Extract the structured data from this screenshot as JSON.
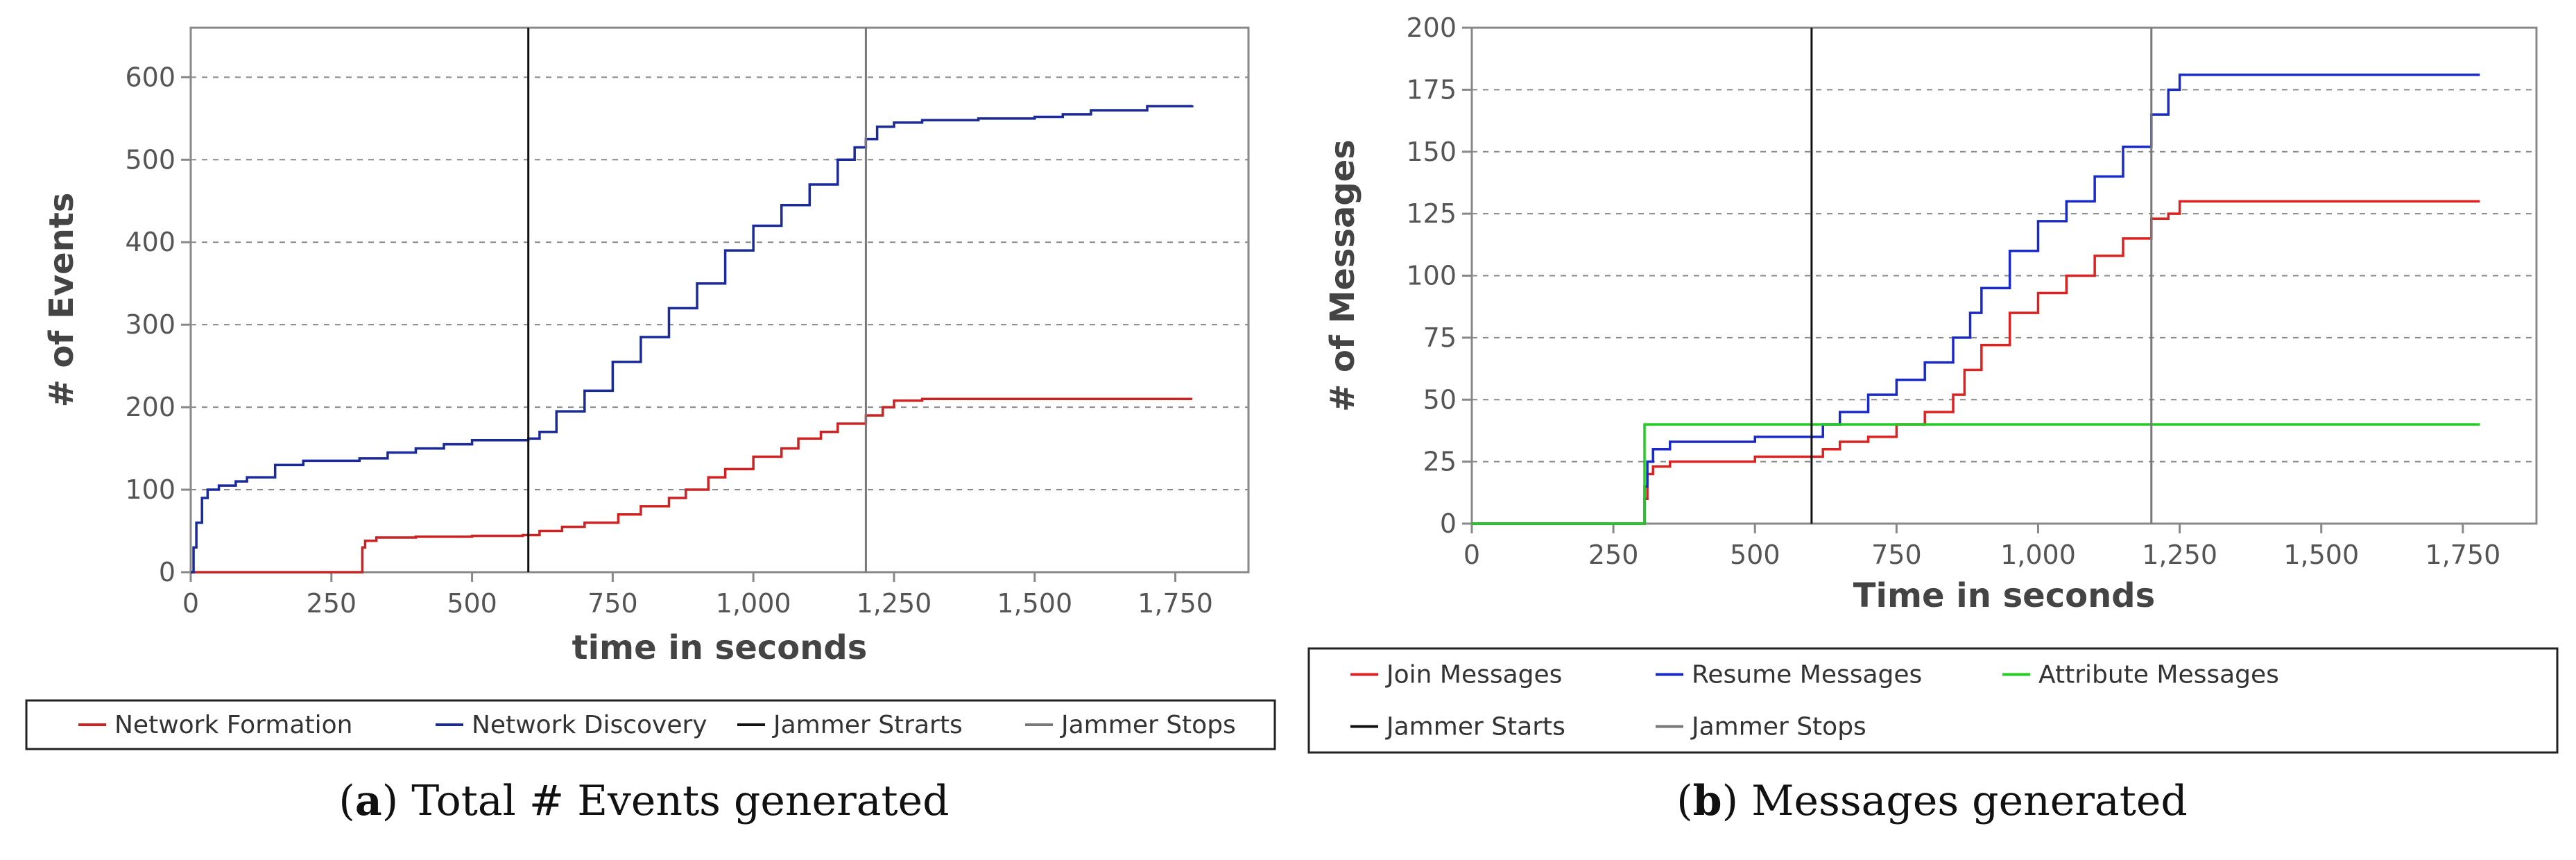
{
  "chart_data": [
    {
      "type": "line",
      "caption_letter": "a",
      "caption_text": "Total # Events generated",
      "xlabel": "time in seconds",
      "ylabel": "# of Events",
      "xlim": [
        0,
        1880
      ],
      "ylim": [
        0,
        660
      ],
      "xticks": [
        0,
        250,
        500,
        750,
        1000,
        1250,
        1500,
        1750
      ],
      "xtick_labels": [
        "0",
        "250",
        "500",
        "750",
        "1,000",
        "1,250",
        "1,500",
        "1,750"
      ],
      "yticks": [
        0,
        100,
        200,
        300,
        400,
        500,
        600
      ],
      "ytick_labels": [
        "0",
        "100",
        "200",
        "300",
        "400",
        "500",
        "600"
      ],
      "grid": true,
      "legend_position": "bottom",
      "series": [
        {
          "name": "Network Formation",
          "color": "#cc2222",
          "x": [
            0,
            300,
            305,
            310,
            330,
            400,
            500,
            590,
            620,
            660,
            700,
            760,
            800,
            850,
            880,
            920,
            950,
            1000,
            1050,
            1080,
            1120,
            1150,
            1200,
            1230,
            1250,
            1300,
            1400,
            1500,
            1600,
            1780
          ],
          "y": [
            0,
            0,
            30,
            38,
            42,
            43,
            44,
            45,
            50,
            55,
            60,
            70,
            80,
            90,
            100,
            115,
            125,
            140,
            150,
            162,
            170,
            180,
            190,
            200,
            208,
            210,
            210,
            210,
            210,
            210
          ]
        },
        {
          "name": "Network Discovery",
          "color": "#1a2a9a",
          "x": [
            0,
            5,
            10,
            20,
            30,
            50,
            80,
            100,
            150,
            200,
            250,
            300,
            350,
            400,
            450,
            500,
            550,
            600,
            620,
            650,
            700,
            750,
            800,
            850,
            900,
            950,
            1000,
            1050,
            1100,
            1150,
            1180,
            1200,
            1220,
            1250,
            1300,
            1400,
            1500,
            1550,
            1600,
            1700,
            1780
          ],
          "y": [
            0,
            30,
            60,
            90,
            100,
            105,
            110,
            115,
            130,
            135,
            135,
            138,
            145,
            150,
            155,
            160,
            160,
            162,
            170,
            195,
            220,
            255,
            285,
            320,
            350,
            390,
            420,
            445,
            470,
            500,
            515,
            525,
            540,
            545,
            548,
            550,
            552,
            555,
            560,
            565,
            566
          ]
        },
        {
          "name": "Jammer Strarts",
          "color": "#111111",
          "x": [
            600,
            600
          ],
          "y": [
            0,
            660
          ]
        },
        {
          "name": "Jammer Stops",
          "color": "#777777",
          "x": [
            1200,
            1200
          ],
          "y": [
            0,
            660
          ]
        }
      ]
    },
    {
      "type": "line",
      "caption_letter": "b",
      "caption_text": "Messages generated",
      "xlabel": "Time in seconds",
      "ylabel": "# of Messages",
      "xlim": [
        0,
        1880
      ],
      "ylim": [
        0,
        200
      ],
      "xticks": [
        0,
        250,
        500,
        750,
        1000,
        1250,
        1500,
        1750
      ],
      "xtick_labels": [
        "0",
        "250",
        "500",
        "750",
        "1,000",
        "1,250",
        "1,500",
        "1,750"
      ],
      "yticks": [
        0,
        25,
        50,
        75,
        100,
        125,
        150,
        175,
        200
      ],
      "ytick_labels": [
        "0",
        "25",
        "50",
        "75",
        "100",
        "125",
        "150",
        "175",
        "200"
      ],
      "grid": true,
      "legend_position": "bottom",
      "series": [
        {
          "name": "Join Messages",
          "color": "#dd2222",
          "x": [
            0,
            300,
            305,
            310,
            320,
            350,
            400,
            500,
            600,
            620,
            650,
            700,
            750,
            800,
            850,
            870,
            900,
            950,
            1000,
            1050,
            1100,
            1150,
            1200,
            1230,
            1250,
            1300,
            1400,
            1500,
            1780
          ],
          "y": [
            0,
            0,
            10,
            20,
            23,
            25,
            25,
            27,
            27,
            30,
            33,
            35,
            40,
            45,
            52,
            62,
            72,
            85,
            93,
            100,
            108,
            115,
            123,
            125,
            130,
            130,
            130,
            130,
            130
          ]
        },
        {
          "name": "Resume Messages",
          "color": "#1a2ac8",
          "x": [
            0,
            300,
            305,
            310,
            320,
            350,
            400,
            500,
            600,
            620,
            650,
            700,
            750,
            800,
            850,
            880,
            900,
            950,
            1000,
            1050,
            1100,
            1150,
            1200,
            1230,
            1250,
            1300,
            1400,
            1500,
            1780
          ],
          "y": [
            0,
            0,
            15,
            25,
            30,
            33,
            33,
            35,
            35,
            40,
            45,
            52,
            58,
            65,
            75,
            85,
            95,
            110,
            122,
            130,
            140,
            152,
            165,
            175,
            181,
            181,
            181,
            181,
            181
          ]
        },
        {
          "name": "Attribute Messages",
          "color": "#22cc22",
          "x": [
            0,
            300,
            305,
            1780
          ],
          "y": [
            0,
            0,
            40,
            40
          ]
        },
        {
          "name": "Jammer Starts",
          "color": "#111111",
          "x": [
            600,
            600
          ],
          "y": [
            0,
            200
          ]
        },
        {
          "name": "Jammer Stops",
          "color": "#777777",
          "x": [
            1200,
            1200
          ],
          "y": [
            0,
            200
          ]
        }
      ]
    }
  ]
}
